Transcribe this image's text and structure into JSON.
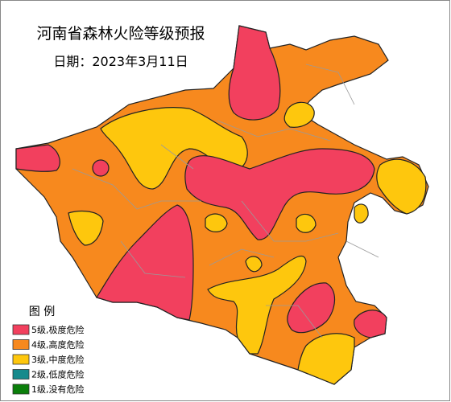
{
  "title": "河南省森林火险等级预报",
  "date": "日期：2023年3月11日",
  "legend": {
    "title": "图 例",
    "items": [
      {
        "label": "5级,极度危险",
        "color": "#f2405e"
      },
      {
        "label": "4级,高度危险",
        "color": "#f7891e"
      },
      {
        "label": "3级,中度危险",
        "color": "#fec70d"
      },
      {
        "label": "2级,低度危险",
        "color": "#168a8c"
      },
      {
        "label": "1级,没有危险",
        "color": "#0b7f0b"
      }
    ]
  }
}
